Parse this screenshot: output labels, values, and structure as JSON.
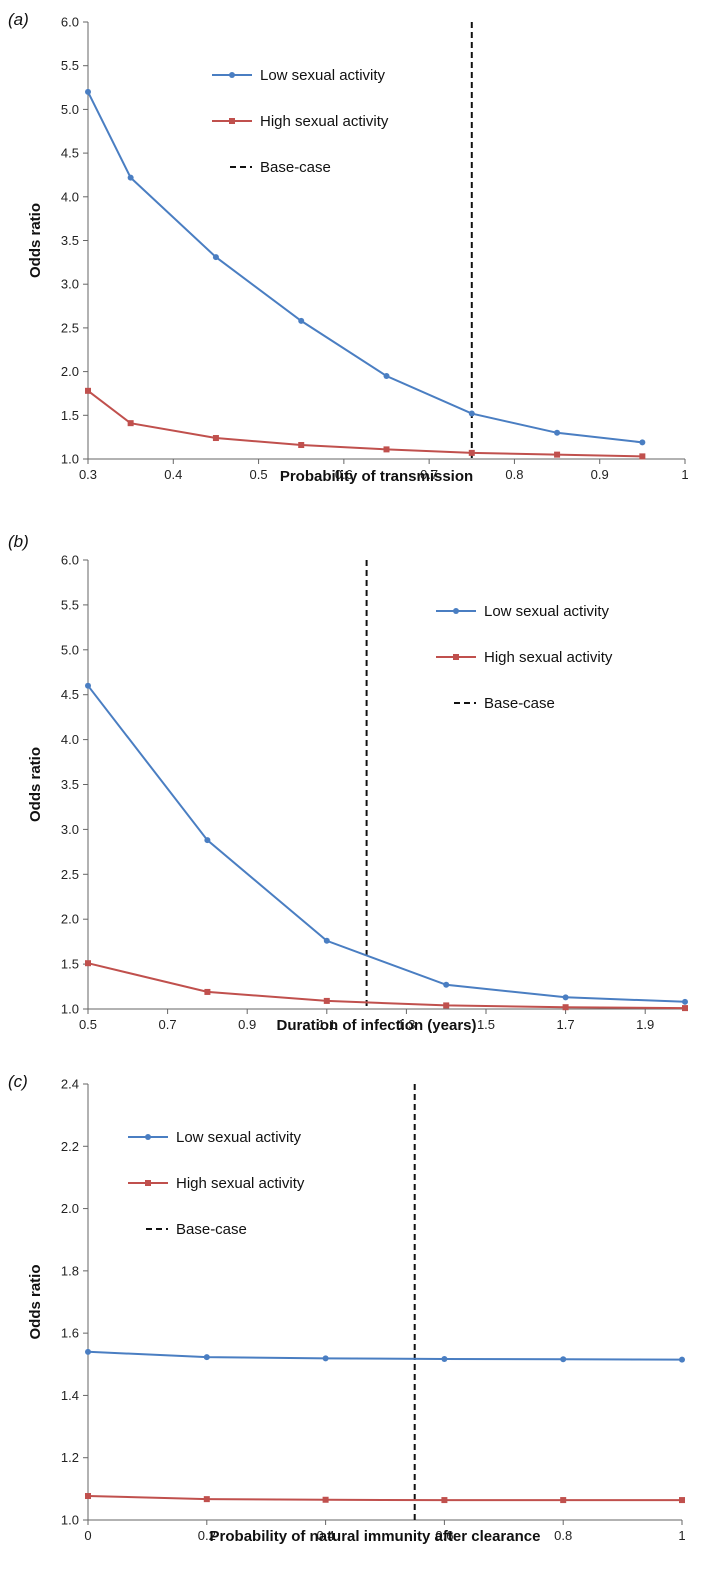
{
  "colors": {
    "low": "#4a7ec2",
    "high": "#c0504d",
    "basecase": "#111111",
    "axis": "#666666"
  },
  "chart_data": [
    {
      "type": "line",
      "panel_label": "(a)",
      "xlabel": "Probability of transmission",
      "ylabel": "Odds ratio",
      "xlim": [
        0.3,
        1
      ],
      "ylim": [
        1.0,
        6.0
      ],
      "xticks": [
        "0.3",
        "0.4",
        "0.5",
        "0.6",
        "0.7",
        "0.8",
        "0.9",
        "1"
      ],
      "yticks": [
        "1.0",
        "1.5",
        "2.0",
        "2.5",
        "3.0",
        "3.5",
        "4.0",
        "4.5",
        "5.0",
        "5.5",
        "6.0"
      ],
      "grid": false,
      "legend_position": "top-center",
      "base_case_x": 0.75,
      "series": [
        {
          "name": "Low sexual activity",
          "x": [
            0.3,
            0.35,
            0.45,
            0.55,
            0.65,
            0.75,
            0.85,
            0.95
          ],
          "values": [
            5.2,
            4.22,
            3.31,
            2.58,
            1.95,
            1.52,
            1.3,
            1.19
          ]
        },
        {
          "name": "High sexual activity",
          "x": [
            0.3,
            0.35,
            0.45,
            0.55,
            0.65,
            0.75,
            0.85,
            0.95
          ],
          "values": [
            1.78,
            1.41,
            1.24,
            1.16,
            1.11,
            1.07,
            1.05,
            1.03
          ]
        },
        {
          "name": "Base-case"
        }
      ]
    },
    {
      "type": "line",
      "panel_label": "(b)",
      "xlabel": "Duration of infection (years)",
      "ylabel": "Odds ratio",
      "xlim": [
        0.5,
        2.0
      ],
      "ylim": [
        1.0,
        6.0
      ],
      "xticks": [
        "0.5",
        "0.7",
        "0.9",
        "1.1",
        "1.3",
        "1.5",
        "1.7",
        "1.9"
      ],
      "yticks": [
        "1.0",
        "1.5",
        "2.0",
        "2.5",
        "3.0",
        "3.5",
        "4.0",
        "4.5",
        "5.0",
        "5.5",
        "6.0"
      ],
      "grid": false,
      "legend_position": "right",
      "base_case_x": 1.2,
      "series": [
        {
          "name": "Low sexual activity",
          "x": [
            0.5,
            0.8,
            1.1,
            1.4,
            1.7,
            2.0
          ],
          "values": [
            4.6,
            2.88,
            1.76,
            1.27,
            1.13,
            1.08
          ]
        },
        {
          "name": "High sexual activity",
          "x": [
            0.5,
            0.8,
            1.1,
            1.4,
            1.7,
            2.0
          ],
          "values": [
            1.51,
            1.19,
            1.09,
            1.04,
            1.02,
            1.01
          ]
        },
        {
          "name": "Base-case"
        }
      ]
    },
    {
      "type": "line",
      "panel_label": "(c)",
      "xlabel": "Probability of natural immunity after clearance",
      "ylabel": "Odds ratio",
      "xlim": [
        0,
        1
      ],
      "ylim": [
        1.0,
        2.4
      ],
      "xticks": [
        "0",
        "0.2",
        "0.4",
        "0.6",
        "0.8",
        "1"
      ],
      "yticks": [
        "1.0",
        "1.2",
        "1.4",
        "1.6",
        "1.8",
        "2.0",
        "2.2",
        "2.4"
      ],
      "grid": false,
      "legend_position": "top-left",
      "base_case_x": 0.55,
      "series": [
        {
          "name": "Low sexual activity",
          "x": [
            0,
            0.2,
            0.4,
            0.6,
            0.8,
            1
          ],
          "values": [
            1.54,
            1.523,
            1.519,
            1.517,
            1.516,
            1.515
          ]
        },
        {
          "name": "High sexual activity",
          "x": [
            0,
            0.2,
            0.4,
            0.6,
            0.8,
            1
          ],
          "values": [
            1.077,
            1.067,
            1.065,
            1.064,
            1.064,
            1.064
          ]
        },
        {
          "name": "Base-case"
        }
      ]
    }
  ]
}
